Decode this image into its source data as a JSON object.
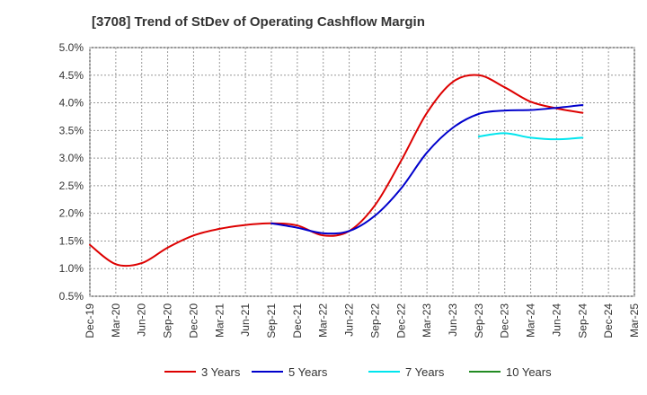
{
  "chart_data": {
    "type": "line",
    "title": "[3708]  Trend of StDev of Operating Cashflow Margin",
    "xlabel": "",
    "ylabel": "",
    "ylim": [
      0.5,
      5.0
    ],
    "y_ticks": [
      "5.0%",
      "4.5%",
      "4.0%",
      "3.5%",
      "3.0%",
      "2.5%",
      "2.0%",
      "1.5%",
      "1.0%",
      "0.5%"
    ],
    "y_tick_values": [
      5.0,
      4.5,
      4.0,
      3.5,
      3.0,
      2.5,
      2.0,
      1.5,
      1.0,
      0.5
    ],
    "categories": [
      "Dec-19",
      "Mar-20",
      "Jun-20",
      "Sep-20",
      "Dec-20",
      "Mar-21",
      "Jun-21",
      "Sep-21",
      "Dec-21",
      "Mar-22",
      "Jun-22",
      "Sep-22",
      "Dec-22",
      "Mar-23",
      "Jun-23",
      "Sep-23",
      "Dec-23",
      "Mar-24",
      "Jun-24",
      "Sep-24",
      "Dec-24",
      "Mar-25"
    ],
    "x_tick_labels": [
      "Dec-19",
      "Mar-20",
      "Jun-20",
      "Sep-20",
      "Dec-20",
      "Mar-21",
      "Jun-21",
      "Sep-21",
      "Dec-21",
      "Mar-22",
      "Jun-22",
      "Sep-22",
      "Dec-22",
      "Mar-23",
      "Jun-23",
      "Sep-23",
      "Dec-23",
      "Mar-24",
      "Jun-24",
      "Sep-24",
      "Dec-24",
      "Mar-25"
    ],
    "grid": true,
    "legend_position": "bottom",
    "series": [
      {
        "name": "3 Years",
        "color": "#dd0000",
        "values": [
          1.43,
          1.08,
          1.1,
          1.38,
          1.6,
          1.72,
          1.79,
          1.82,
          1.78,
          1.6,
          1.68,
          2.15,
          2.95,
          3.82,
          4.38,
          4.5,
          4.28,
          4.02,
          3.9,
          3.82,
          null,
          null
        ]
      },
      {
        "name": "5 Years",
        "color": "#0000cc",
        "values": [
          null,
          null,
          null,
          null,
          null,
          null,
          null,
          1.82,
          1.74,
          1.64,
          1.68,
          1.96,
          2.45,
          3.1,
          3.55,
          3.8,
          3.86,
          3.87,
          3.91,
          3.96,
          null,
          null
        ]
      },
      {
        "name": "7 Years",
        "color": "#00e5ee",
        "values": [
          null,
          null,
          null,
          null,
          null,
          null,
          null,
          null,
          null,
          null,
          null,
          null,
          null,
          null,
          null,
          3.39,
          3.45,
          3.37,
          3.34,
          3.37,
          null,
          null
        ]
      },
      {
        "name": "10 Years",
        "color": "#228b22",
        "values": [
          null,
          null,
          null,
          null,
          null,
          null,
          null,
          null,
          null,
          null,
          null,
          null,
          null,
          null,
          null,
          null,
          null,
          null,
          null,
          null,
          null,
          null
        ]
      }
    ]
  }
}
